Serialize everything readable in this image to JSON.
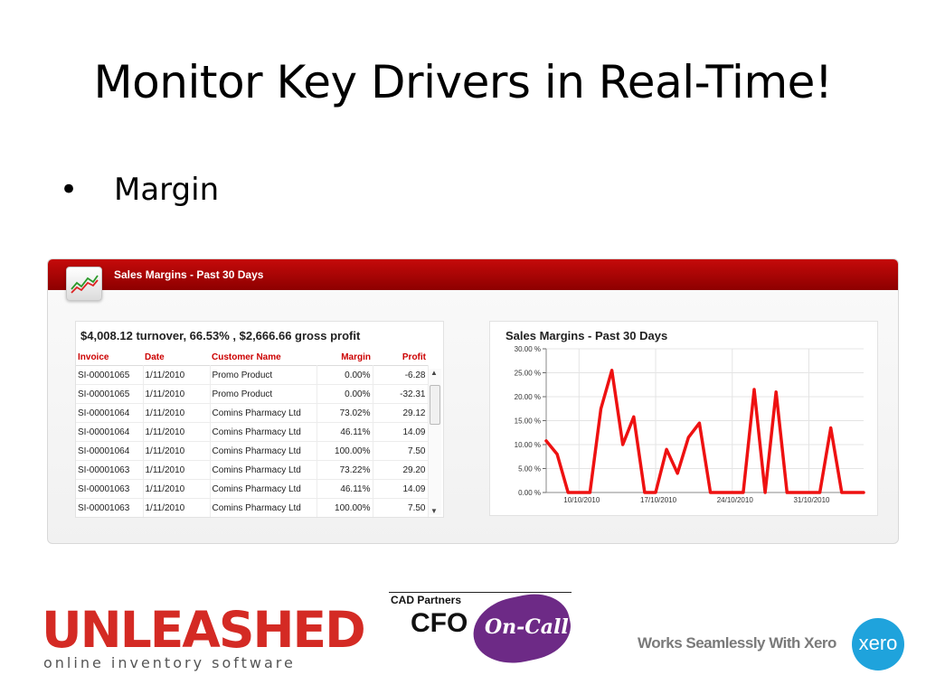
{
  "slide": {
    "title": "Monitor Key Drivers in Real-Time!",
    "bullet_symbol": "•",
    "bullet_text": "Margin"
  },
  "widget": {
    "header_title": "Sales Margins - Past 30 Days",
    "header_color": "#b30000",
    "icon": "trend-chart-icon",
    "table": {
      "summary": "$4,008.12 turnover, 66.53% , $2,666.66 gross profit",
      "columns": [
        "Invoice",
        "Date",
        "Customer Name",
        "Margin",
        "Profit"
      ],
      "rows": [
        [
          "SI-00001065",
          "1/11/2010",
          "Promo Product",
          "0.00%",
          "-6.28"
        ],
        [
          "SI-00001065",
          "1/11/2010",
          "Promo Product",
          "0.00%",
          "-32.31"
        ],
        [
          "SI-00001064",
          "1/11/2010",
          "Comins Pharmacy Ltd",
          "73.02%",
          "29.12"
        ],
        [
          "SI-00001064",
          "1/11/2010",
          "Comins Pharmacy Ltd",
          "46.11%",
          "14.09"
        ],
        [
          "SI-00001064",
          "1/11/2010",
          "Comins Pharmacy Ltd",
          "100.00%",
          "7.50"
        ],
        [
          "SI-00001063",
          "1/11/2010",
          "Comins Pharmacy Ltd",
          "73.22%",
          "29.20"
        ],
        [
          "SI-00001063",
          "1/11/2010",
          "Comins Pharmacy Ltd",
          "46.11%",
          "14.09"
        ],
        [
          "SI-00001063",
          "1/11/2010",
          "Comins Pharmacy Ltd",
          "100.00%",
          "7.50"
        ]
      ],
      "scroll_up_symbol": "▲",
      "scroll_down_symbol": "▼"
    }
  },
  "chart_data": {
    "type": "line",
    "title": "Sales Margins - Past 30 Days",
    "y_ticks": [
      "30.00 %",
      "25.00 %",
      "20.00 %",
      "15.00 %",
      "10.00 %",
      "5.00 %",
      "0.00 %"
    ],
    "x_ticks": [
      "10/10/2010",
      "17/10/2010",
      "24/10/2010",
      "31/10/2010"
    ],
    "x_tick_positions": [
      3,
      10,
      17,
      24
    ],
    "ylim": [
      0,
      30
    ],
    "grid": true,
    "line_color": "#ee1111",
    "x": [
      0,
      1,
      2,
      3,
      4,
      5,
      6,
      7,
      8,
      9,
      10,
      11,
      12,
      13,
      14,
      15,
      16,
      17,
      18,
      19,
      20,
      21,
      22,
      23,
      24,
      25,
      26,
      27,
      28,
      29
    ],
    "values": [
      10.8,
      8,
      0,
      0,
      0,
      17.5,
      25.5,
      10,
      15.8,
      0,
      0,
      9,
      4,
      11.5,
      14.5,
      0,
      0,
      0,
      0,
      21.5,
      0,
      21,
      0,
      0,
      0,
      0,
      13.5,
      0,
      0,
      0
    ]
  },
  "logos": {
    "unleashed_word": "UNLEASHED",
    "unleashed_tagline": "online inventory software",
    "cfo_cad": "CAD Partners",
    "cfo_word": "CFO",
    "cfo_oncall": "On-Call",
    "xero_text": "Works Seamlessly With Xero",
    "xero_badge": "xero",
    "unleashed_color": "#d42a24",
    "cfo_color": "#6d2a86",
    "xero_color": "#1fa3dc"
  }
}
